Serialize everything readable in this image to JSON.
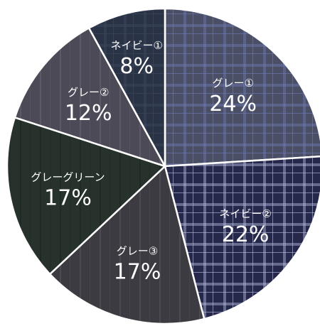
{
  "chart_data": {
    "type": "pie",
    "start_angle_deg": 0,
    "direction": "clockwise",
    "slices": [
      {
        "label": "グレー①",
        "value": 24,
        "display": "24%",
        "color": "#4a4f66",
        "accent": "#6f7bb5",
        "pattern": "plaid"
      },
      {
        "label": "ネイビー②",
        "value": 22,
        "display": "22%",
        "color": "#25284a",
        "accent": "#b8bfe0",
        "pattern": "plaid"
      },
      {
        "label": "グレー③",
        "value": 17,
        "display": "17%",
        "color": "#3d3b42",
        "accent": "#55535c",
        "pattern": "pleat"
      },
      {
        "label": "グレーグリーン",
        "value": 17,
        "display": "17%",
        "color": "#27322c",
        "accent": "#1a221d",
        "pattern": "pleat"
      },
      {
        "label": "グレー②",
        "value": 12,
        "display": "12%",
        "color": "#4c4a56",
        "accent": "#6a6878",
        "pattern": "pleat"
      },
      {
        "label": "ネイビー①",
        "value": 8,
        "display": "8%",
        "color": "#2a3346",
        "accent": "#3e4a60",
        "pattern": "plaid"
      }
    ]
  }
}
